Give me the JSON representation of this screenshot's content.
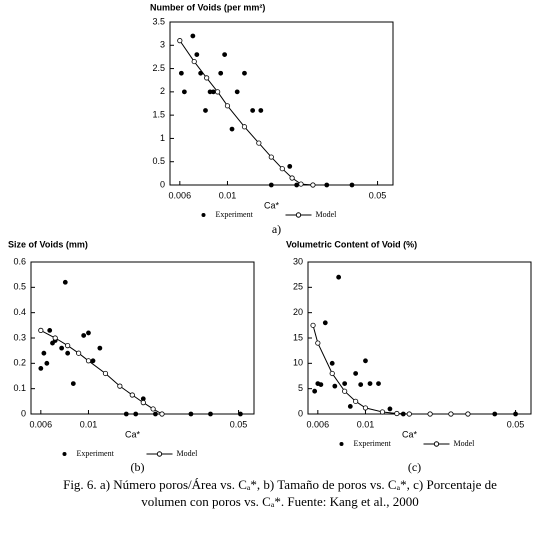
{
  "chart_data": [
    {
      "type": "scatter",
      "title": "Number of Voids (per mm²)",
      "x_label": "Ca*",
      "panel_label": "a)",
      "xlog": true,
      "xlim": [
        0.0054,
        0.059
      ],
      "xticks": [
        0.006,
        0.01,
        0.05
      ],
      "ylim": [
        0,
        3.5
      ],
      "yticks": [
        0,
        0.5,
        1,
        1.5,
        2,
        2.5,
        3,
        3.5
      ],
      "legend": "bottom",
      "series": [
        {
          "name": "Experiment",
          "color": "#000000",
          "marker": "filled",
          "x": [
            0.0061,
            0.0063,
            0.0069,
            0.0072,
            0.0075,
            0.0079,
            0.0083,
            0.0086,
            0.0093,
            0.0097,
            0.0105,
            0.0111,
            0.012,
            0.0131,
            0.0143,
            0.0195,
            0.016,
            0.021,
            0.029,
            0.038
          ],
          "values": [
            2.4,
            2.0,
            3.2,
            2.8,
            2.4,
            1.6,
            2.0,
            2.0,
            2.4,
            2.8,
            1.2,
            2.0,
            2.4,
            1.6,
            1.6,
            0.4,
            0,
            0,
            0,
            0
          ]
        },
        {
          "name": "Model",
          "color": "#000000",
          "marker": "open",
          "line": true,
          "x": [
            0.006,
            0.007,
            0.008,
            0.009,
            0.01,
            0.012,
            0.014,
            0.016,
            0.018,
            0.02,
            0.022,
            0.025
          ],
          "values": [
            3.1,
            2.65,
            2.3,
            2.0,
            1.7,
            1.25,
            0.9,
            0.6,
            0.35,
            0.15,
            0.02,
            0
          ]
        }
      ]
    },
    {
      "type": "scatter",
      "title": "Size of Voids (mm)",
      "x_label": "Ca*",
      "panel_label": "(b)",
      "xlog": true,
      "xlim": [
        0.0054,
        0.059
      ],
      "xticks": [
        0.006,
        0.01,
        0.05
      ],
      "ylim": [
        0,
        0.6
      ],
      "yticks": [
        0,
        0.1,
        0.2,
        0.3,
        0.4,
        0.5,
        0.6
      ],
      "legend": "bottom",
      "series": [
        {
          "name": "Experiment",
          "color": "#000000",
          "marker": "filled",
          "x": [
            0.006,
            0.0062,
            0.0064,
            0.0066,
            0.0068,
            0.007,
            0.0075,
            0.0078,
            0.008,
            0.0085,
            0.009,
            0.0095,
            0.01,
            0.0105,
            0.0113,
            0.018,
            0.015,
            0.0166,
            0.0205,
            0.03,
            0.037,
            0.051
          ],
          "values": [
            0.18,
            0.24,
            0.2,
            0.33,
            0.28,
            0.29,
            0.26,
            0.52,
            0.24,
            0.12,
            0.24,
            0.31,
            0.32,
            0.21,
            0.26,
            0.06,
            0,
            0,
            0,
            0,
            0,
            0
          ]
        },
        {
          "name": "Model",
          "color": "#000000",
          "marker": "open",
          "line": true,
          "x": [
            0.006,
            0.007,
            0.008,
            0.009,
            0.01,
            0.012,
            0.014,
            0.016,
            0.018,
            0.02,
            0.022
          ],
          "values": [
            0.33,
            0.3,
            0.27,
            0.24,
            0.21,
            0.16,
            0.11,
            0.075,
            0.045,
            0.02,
            0
          ]
        }
      ]
    },
    {
      "type": "scatter",
      "title": "Volumetric Content of Void (%)",
      "x_label": "Ca*",
      "panel_label": "(c)",
      "xlog": true,
      "xlim": [
        0.0054,
        0.059
      ],
      "xticks": [
        0.006,
        0.01,
        0.05
      ],
      "ylim": [
        0,
        30
      ],
      "yticks": [
        0,
        5,
        10,
        15,
        20,
        25,
        30
      ],
      "legend": "bottom",
      "series": [
        {
          "name": "Experiment",
          "color": "#000000",
          "marker": "filled",
          "x": [
            0.0058,
            0.006,
            0.0062,
            0.0065,
            0.007,
            0.0072,
            0.0075,
            0.008,
            0.0085,
            0.009,
            0.0095,
            0.01,
            0.0105,
            0.0115,
            0.013,
            0.015,
            0.02,
            0.025,
            0.03,
            0.04,
            0.05
          ],
          "values": [
            4.5,
            6,
            5.8,
            18,
            10,
            5.5,
            27,
            6,
            1.5,
            8,
            5.8,
            10.5,
            6,
            6,
            1,
            0,
            0,
            0,
            0,
            0,
            0
          ]
        },
        {
          "name": "Model",
          "color": "#000000",
          "marker": "open",
          "line": true,
          "x": [
            0.0057,
            0.006,
            0.007,
            0.008,
            0.009,
            0.01,
            0.012,
            0.014,
            0.016,
            0.02,
            0.025,
            0.03
          ],
          "values": [
            17.5,
            14,
            8,
            4.5,
            2.5,
            1.2,
            0.4,
            0.1,
            0,
            0,
            0,
            0
          ]
        }
      ]
    }
  ],
  "caption": "Fig. 6. a) Número poros/Área vs. Cₐ*, b) Tamaño de poros vs. Cₐ*, c) Porcentaje de volumen con poros vs. Cₐ*. Fuente: Kang et al., 2000"
}
